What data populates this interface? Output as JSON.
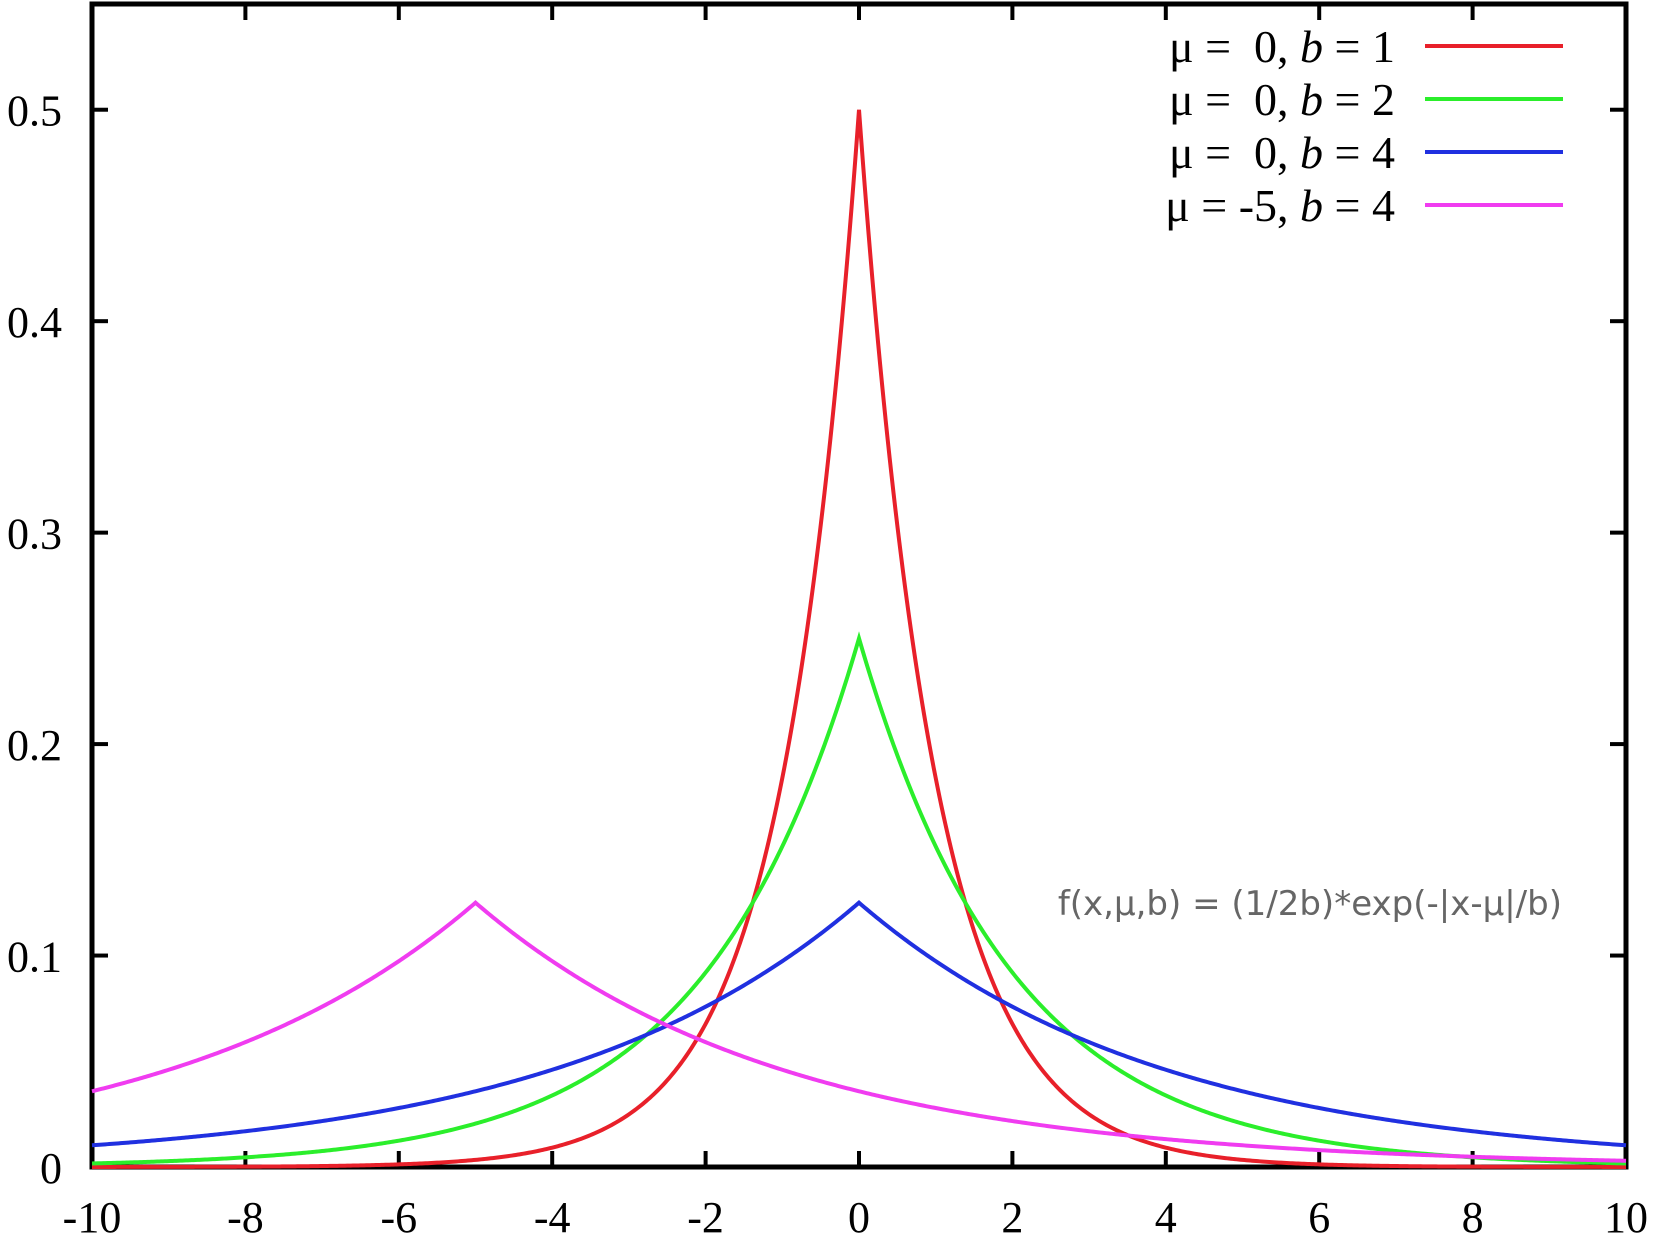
{
  "chart_data": {
    "type": "line",
    "title": "",
    "xlabel": "",
    "ylabel": "",
    "xlim": [
      -10,
      10
    ],
    "ylim": [
      0,
      0.55
    ],
    "grid": false,
    "legend_position": "top-right",
    "x_ticks": [
      -10,
      -8,
      -6,
      -4,
      -2,
      0,
      2,
      4,
      6,
      8,
      10
    ],
    "x_tick_labels": [
      "-10",
      "-8",
      "-6",
      "-4",
      "-2",
      "0",
      "2",
      "4",
      "6",
      "8",
      "10"
    ],
    "y_ticks": [
      0,
      0.1,
      0.2,
      0.3,
      0.4,
      0.5
    ],
    "y_tick_labels": [
      "0",
      "0.1",
      "0.2",
      "0.3",
      "0.4",
      "0.5"
    ],
    "annotation": "f(x,μ,b) = (1/2b)*exp(-|x-μ|/b)",
    "series": [
      {
        "name": "μ =  0, b = 1",
        "legend_parts": [
          "μ =  0, ",
          "b",
          " = 1"
        ],
        "color": "#e8202a",
        "mu": 0,
        "b": 1,
        "x": [
          -10,
          -8,
          -6,
          -4,
          -3,
          -2,
          -1.5,
          -1,
          -0.5,
          0,
          0.5,
          1,
          1.5,
          2,
          3,
          4,
          6,
          8,
          10
        ],
        "y": [
          2e-05,
          0.00017,
          0.00124,
          0.00916,
          0.0249,
          0.0677,
          0.1116,
          0.1839,
          0.3033,
          0.5,
          0.3033,
          0.1839,
          0.1116,
          0.0677,
          0.0249,
          0.00916,
          0.00124,
          0.00017,
          2e-05
        ]
      },
      {
        "name": "μ =  0, b = 2",
        "legend_parts": [
          "μ =  0, ",
          "b",
          " = 2"
        ],
        "color": "#2bee2b",
        "mu": 0,
        "b": 2,
        "x": [
          -10,
          -8,
          -6,
          -4,
          -2,
          -1,
          0,
          1,
          2,
          4,
          6,
          8,
          10
        ],
        "y": [
          0.00168,
          0.00458,
          0.01245,
          0.03383,
          0.09197,
          0.15163,
          0.25,
          0.15163,
          0.09197,
          0.03383,
          0.01245,
          0.00458,
          0.00168
        ]
      },
      {
        "name": "μ =  0, b = 4",
        "legend_parts": [
          "μ =  0, ",
          "b",
          " = 4"
        ],
        "color": "#2030e0",
        "mu": 0,
        "b": 4,
        "x": [
          -10,
          -8,
          -6,
          -4,
          -2,
          0,
          2,
          4,
          6,
          8,
          10
        ],
        "y": [
          0.01026,
          0.01692,
          0.02789,
          0.04598,
          0.07582,
          0.125,
          0.07582,
          0.04598,
          0.02789,
          0.01692,
          0.01026
        ]
      },
      {
        "name": "μ = -5, b = 4",
        "legend_parts": [
          "μ = -5, ",
          "b",
          " = 4"
        ],
        "color": "#f03cf0",
        "mu": -5,
        "b": 4,
        "x": [
          -10,
          -8,
          -6,
          -5,
          -4,
          -2,
          0,
          2,
          4,
          6,
          8,
          10
        ],
        "y": [
          0.03581,
          0.05904,
          0.09735,
          0.125,
          0.09735,
          0.05904,
          0.03581,
          0.02172,
          0.01317,
          0.00799,
          0.00485,
          0.00294
        ]
      }
    ]
  }
}
